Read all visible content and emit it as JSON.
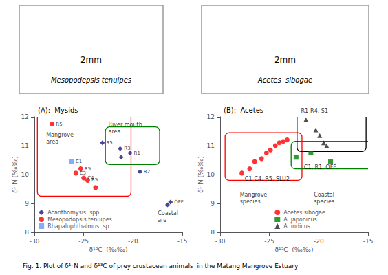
{
  "chart_data": [
    {
      "type": "scatter",
      "title": "(A):  Mysids",
      "xlabel": "δ¹³C  (‰‰)",
      "ylabel": "δ¹׳N [‰‰]",
      "xlim": [
        -30,
        -15
      ],
      "ylim": [
        8,
        12
      ],
      "xticks": [
        -30,
        -25,
        -20,
        -15
      ],
      "yticks": [
        8,
        9,
        10,
        11,
        12
      ],
      "grid": false,
      "legend": "lower left",
      "series": [
        {
          "name": "Acanthomysis. spp.",
          "color": "#1a1a7c",
          "marker": "diamond",
          "x": [
            -23.1,
            -21.3,
            -20.3,
            -19.3,
            -21.2,
            -16.2,
            -16.5
          ],
          "values": [
            11.1,
            10.9,
            10.75,
            10.1,
            10.6,
            9.05,
            8.95
          ],
          "labels": [
            "R5",
            "R3",
            "R1",
            "R2",
            null,
            "OFF",
            null
          ]
        },
        {
          "name": "Mesopodopsis tenuipes",
          "color": "red",
          "marker": "circle",
          "x": [
            -28.2,
            -25.8,
            -25.3,
            -25.0,
            -24.6,
            -23.8
          ],
          "values": [
            11.75,
            10.05,
            10.2,
            9.88,
            9.8,
            9.55
          ],
          "labels": [
            "R5",
            "C3",
            "R5",
            "C4",
            "R5",
            null
          ]
        },
        {
          "name": "Rhapalophthalmus. sp.",
          "color": "#6699ff",
          "marker": "square",
          "x": [
            -26.2
          ],
          "values": [
            10.45
          ],
          "labels": [
            "C1"
          ]
        }
      ],
      "regions": [
        {
          "x": -29.7,
          "y": 9.25,
          "w": 9.5,
          "h": 2.85,
          "color": "red"
        },
        {
          "x": -22.8,
          "y": 10.35,
          "w": 5.5,
          "h": 1.3,
          "color": "green"
        }
      ],
      "annotations": [
        {
          "text": "Mangrove\narea",
          "x": -28.8,
          "y": 11.5
        },
        {
          "text": "River mouth\narea",
          "x": -22.5,
          "y": 11.85
        },
        {
          "text": "Coastal\nare",
          "x": -17.5,
          "y": 8.78
        }
      ]
    },
    {
      "type": "scatter",
      "title": "(B):  Acetes",
      "xlabel": "δ¹³C  (‰‰)",
      "ylabel": "δ¹׳N [‰‰]",
      "xlim": [
        -30,
        -15
      ],
      "ylim": [
        8,
        12
      ],
      "xticks": [
        -30,
        -25,
        -20,
        -15
      ],
      "yticks": [
        8,
        9,
        10,
        11,
        12
      ],
      "grid": false,
      "legend": "lower left",
      "series": [
        {
          "name": "Acetes sibogae",
          "color": "red",
          "marker": "circle",
          "x": [
            -27.8,
            -27.0,
            -26.5,
            -25.8,
            -25.3,
            -24.9,
            -24.4,
            -24.0,
            -23.6,
            -23.2
          ],
          "values": [
            10.05,
            10.2,
            10.45,
            10.55,
            10.75,
            10.85,
            11.0,
            11.1,
            11.15,
            11.2
          ]
        },
        {
          "name": "A. japonicus",
          "color": "green",
          "marker": "square",
          "x": [
            -22.3,
            -20.8,
            -18.8
          ],
          "values": [
            10.6,
            10.75,
            10.45
          ]
        },
        {
          "name": "A. indicus",
          "color": "#222222",
          "marker": "triangle",
          "x": [
            -21.3,
            -20.3,
            -19.9,
            -19.5,
            -19.2
          ],
          "values": [
            11.9,
            11.55,
            11.35,
            11.1,
            11.0
          ]
        }
      ],
      "regions": [
        {
          "x": -29.5,
          "y": 9.8,
          "w": 7.8,
          "h": 1.65,
          "color": "red"
        },
        {
          "x": -22.8,
          "y": 10.2,
          "w": 8.3,
          "h": 0.95,
          "color": "green"
        },
        {
          "x": -22.2,
          "y": 10.8,
          "w": 7.0,
          "h": 1.45,
          "color": "black"
        }
      ],
      "annotations": [
        {
          "text": "C1-C4, R5, SLU2",
          "x": -27.5,
          "y": 9.72
        },
        {
          "text": "C1, R1, OFF.",
          "x": -21.5,
          "y": 10.12
        },
        {
          "text": "R1-R4, S1",
          "x": -21.8,
          "y": 12.08
        },
        {
          "text": "Mangrove\nspecies",
          "x": -28.0,
          "y": 9.42
        },
        {
          "text": "Coastal\nspecies",
          "x": -20.5,
          "y": 9.42
        }
      ]
    }
  ],
  "images": [
    {
      "label": "2mm",
      "species": "Mesopodepsis tenuipes"
    },
    {
      "label": "2mm",
      "species": "Acetes  sibogae"
    }
  ],
  "caption": "Fig. 1. Plot of δ¹׳N and δ¹³C of prey crustacean animals  in the Matang Mangrove Estuary"
}
